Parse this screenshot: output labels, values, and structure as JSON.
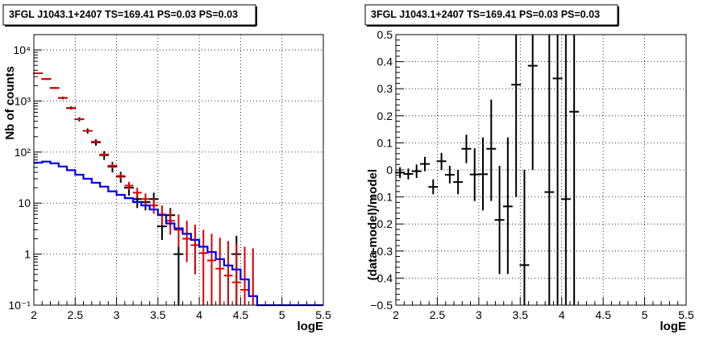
{
  "chart_data": [
    {
      "type": "scatter",
      "title": "3FGL J1043.1+2407 TS=169.41 PS=0.03 PS=0.03",
      "xlabel": "logE",
      "ylabel": "Nb of counts",
      "yscale": "log",
      "xlim": [
        2,
        5.5
      ],
      "ylim": [
        0.1,
        20000
      ],
      "grid": true,
      "xticks": [
        2,
        2.5,
        3,
        3.5,
        4,
        4.5,
        5,
        5.5
      ],
      "xtick_labels": [
        "2",
        "2.5",
        "3",
        "3.5",
        "4",
        "4.5",
        "5",
        "5.5"
      ],
      "yticks": [
        0.1,
        1,
        10,
        100,
        1000,
        10000
      ],
      "ytick_labels": [
        "10⁻¹",
        "1",
        "10",
        "10²",
        "10³",
        "10⁴"
      ],
      "colors": {
        "data": "#000000",
        "model": "#dd0000",
        "background": "#0000ee"
      },
      "series": [
        {
          "kind": "points",
          "x": [
            2.05,
            2.15,
            2.25,
            2.35,
            2.45,
            2.55,
            2.65,
            2.75,
            2.85,
            2.95,
            3.05,
            3.15,
            3.25,
            3.35,
            3.45,
            3.55,
            3.65,
            3.75,
            3.85,
            3.95,
            4.05,
            4.15,
            4.25,
            4.35,
            4.45,
            4.55,
            4.65
          ],
          "y": [
            3500,
            2700,
            1800,
            1150,
            730,
            440,
            260,
            155,
            87,
            52,
            33,
            20,
            12,
            10.5,
            12,
            3.5,
            5.8,
            1,
            null,
            null,
            null,
            null,
            null,
            null,
            1,
            null,
            null
          ],
          "ylow": [
            3380,
            2600,
            1730,
            1080,
            680,
            400,
            230,
            133,
            70,
            40,
            25,
            14,
            8,
            7.2,
            8.5,
            1.9,
            3.6,
            0.1,
            null,
            null,
            null,
            null,
            null,
            null,
            0.1,
            null,
            null
          ],
          "yhigh": [
            3620,
            2800,
            1870,
            1220,
            780,
            480,
            290,
            178,
            104,
            64,
            41,
            26,
            16,
            14,
            16,
            5.2,
            8,
            2.3,
            null,
            null,
            null,
            null,
            null,
            null,
            2.3,
            null,
            null
          ]
        },
        {
          "kind": "points",
          "x": [
            2.05,
            2.15,
            2.25,
            2.35,
            2.45,
            2.55,
            2.65,
            2.75,
            2.85,
            2.95,
            3.05,
            3.15,
            3.25,
            3.35,
            3.45,
            3.55,
            3.65,
            3.75,
            3.85,
            3.95,
            4.05,
            4.15,
            4.25,
            4.35,
            4.45,
            4.55,
            4.65
          ],
          "y": [
            3500,
            2700,
            1800,
            1150,
            720,
            440,
            260,
            160,
            90,
            54,
            34,
            22,
            16,
            12,
            9,
            6,
            4.5,
            3,
            2,
            1.5,
            1.05,
            0.75,
            0.52,
            0.38,
            0.28,
            0.2,
            0.15
          ],
          "ylow": [
            3440,
            2650,
            1760,
            1120,
            700,
            425,
            250,
            152,
            84,
            49,
            30,
            18,
            12.5,
            8.7,
            6.2,
            3.6,
            2.4,
            1.4,
            0.7,
            0.4,
            0.1,
            0.1,
            0.1,
            0.1,
            0.1,
            0.1,
            0.1
          ],
          "yhigh": [
            3560,
            2750,
            1840,
            1180,
            740,
            455,
            270,
            168,
            96,
            59,
            38,
            26,
            20,
            15.5,
            12.5,
            9,
            7.5,
            6,
            4.5,
            3.8,
            3,
            2.5,
            2.1,
            1.8,
            1.6,
            1.4,
            1.3
          ]
        },
        {
          "kind": "step",
          "x_edges": [
            2.0,
            2.1,
            2.2,
            2.3,
            2.4,
            2.5,
            2.6,
            2.7,
            2.8,
            2.9,
            3.0,
            3.1,
            3.2,
            3.3,
            3.4,
            3.5,
            3.6,
            3.7,
            3.8,
            3.9,
            4.0,
            4.1,
            4.2,
            4.3,
            4.4,
            4.5,
            4.6,
            4.7,
            4.8,
            5.5
          ],
          "values": [
            62,
            65,
            60,
            52,
            44,
            36,
            30,
            25,
            21,
            17,
            14.5,
            12.5,
            10.5,
            9,
            7.5,
            5.8,
            4,
            3.2,
            2.5,
            1.9,
            1.4,
            1.1,
            0.8,
            0.6,
            0.5,
            0.32,
            0.15,
            0.1,
            0.1
          ]
        }
      ]
    },
    {
      "type": "scatter",
      "title": "3FGL J1043.1+2407 TS=169.41 PS=0.03 PS=0.03",
      "xlabel": "logE",
      "ylabel": "(data-model)/model",
      "xlim": [
        2,
        5.5
      ],
      "ylim": [
        -0.5,
        0.5
      ],
      "grid": true,
      "xticks": [
        2,
        2.5,
        3,
        3.5,
        4,
        4.5,
        5,
        5.5
      ],
      "xtick_labels": [
        "2",
        "2.5",
        "3",
        "3.5",
        "4",
        "4.5",
        "5",
        "5.5"
      ],
      "yticks": [
        -0.5,
        -0.4,
        -0.3,
        -0.2,
        -0.1,
        0,
        0.1,
        0.2,
        0.3,
        0.4,
        0.5
      ],
      "ytick_labels": [
        "−0.5",
        "−0.4",
        "−0.3",
        "−0.2",
        "−0.1",
        "0",
        "0.1",
        "0.2",
        "0.3",
        "0.4",
        "0.5"
      ],
      "series": [
        {
          "kind": "points",
          "x": [
            2.05,
            2.15,
            2.25,
            2.35,
            2.45,
            2.55,
            2.65,
            2.75,
            2.85,
            2.95,
            3.05,
            3.15,
            3.25,
            3.35,
            3.45,
            3.55,
            3.65,
            3.85,
            3.95,
            4.05,
            4.15
          ],
          "y": [
            -0.01,
            -0.015,
            -0.005,
            0.022,
            -0.063,
            0.032,
            -0.018,
            -0.045,
            0.078,
            -0.017,
            -0.016,
            0.078,
            -0.185,
            -0.135,
            0.315,
            -0.352,
            0.385,
            -0.082,
            0.338,
            -0.108,
            0.215
          ],
          "ylow": [
            -0.03,
            -0.035,
            -0.03,
            -0.005,
            -0.09,
            0.0,
            -0.05,
            -0.09,
            0.025,
            -0.115,
            -0.15,
            -0.115,
            -0.385,
            -0.385,
            -0.1,
            -0.5,
            0.0,
            -0.5,
            -0.5,
            -0.5,
            -0.5
          ],
          "yhigh": [
            0.01,
            0.005,
            0.02,
            0.048,
            -0.035,
            0.063,
            0.015,
            0.0,
            0.13,
            0.08,
            0.12,
            0.26,
            0.015,
            0.12,
            0.5,
            0.0,
            0.5,
            0.5,
            0.5,
            0.5,
            0.5
          ]
        }
      ]
    }
  ]
}
